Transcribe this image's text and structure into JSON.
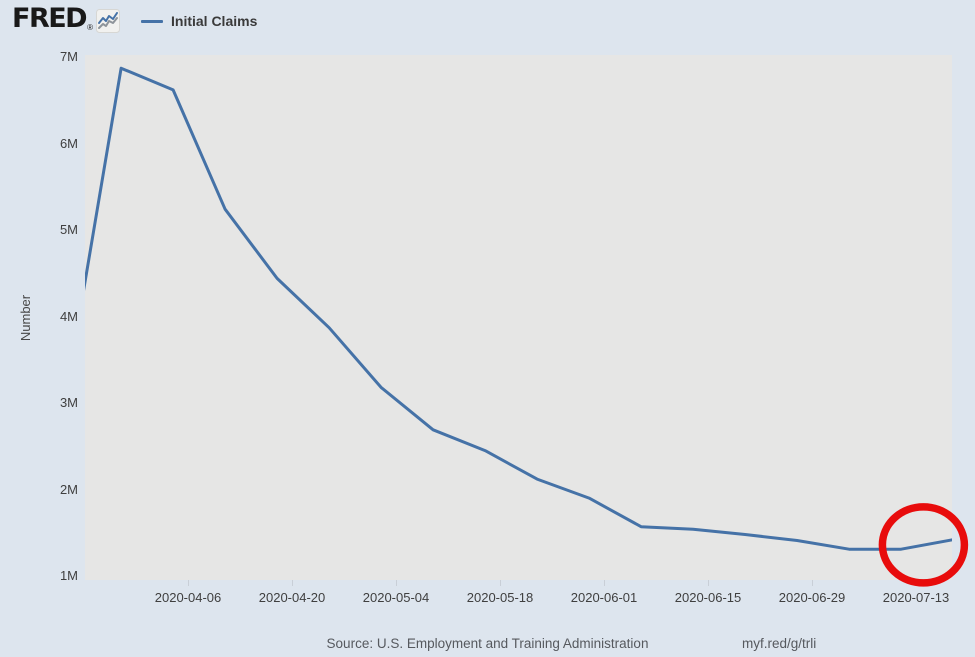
{
  "header": {
    "brand": "FRED",
    "registered_mark": "®"
  },
  "legend": {
    "label": "Initial Claims",
    "series_color": "#4572a7"
  },
  "chart_data": {
    "type": "line",
    "title": "Initial Claims",
    "ylabel": "Number",
    "xlabel": "",
    "grid": false,
    "legend_position": "top-left",
    "page_bg": "#dde5ee",
    "plot_bg": "#e6e6e5",
    "line_color": "#4572a7",
    "x": [
      "2020-03-21",
      "2020-03-28",
      "2020-04-04",
      "2020-04-11",
      "2020-04-18",
      "2020-04-25",
      "2020-05-02",
      "2020-05-09",
      "2020-05-16",
      "2020-05-23",
      "2020-05-30",
      "2020-06-06",
      "2020-06-13",
      "2020-06-20",
      "2020-06-27",
      "2020-07-04",
      "2020-07-11",
      "2020-07-18"
    ],
    "values_millions": [
      3.31,
      6.87,
      6.62,
      5.24,
      4.44,
      3.87,
      3.18,
      2.69,
      2.45,
      2.12,
      1.9,
      1.57,
      1.54,
      1.48,
      1.41,
      1.31,
      1.31,
      1.42
    ],
    "x_range": [
      "2020-03-23",
      "2020-07-18"
    ],
    "y_axis_max_millions": 7,
    "y_axis_min_millions": 1,
    "y_tick_values": [
      7,
      6,
      5,
      4,
      3,
      2,
      1
    ],
    "y_tick_labels": [
      "7M",
      "6M",
      "5M",
      "4M",
      "3M",
      "2M",
      "1M"
    ],
    "x_ticks": [
      "2020-04-06",
      "2020-04-20",
      "2020-05-04",
      "2020-05-18",
      "2020-06-01",
      "2020-06-15",
      "2020-06-29",
      "2020-07-13"
    ]
  },
  "annotation": {
    "shape": "circle",
    "color": "#e80c0c",
    "around": "latest data point near 2020-07-13",
    "center_date": "2020-07-14",
    "center_value_millions": 1.36
  },
  "footer": {
    "source": "Source: U.S. Employment and Training Administration",
    "link": "myf.red/g/trli"
  }
}
